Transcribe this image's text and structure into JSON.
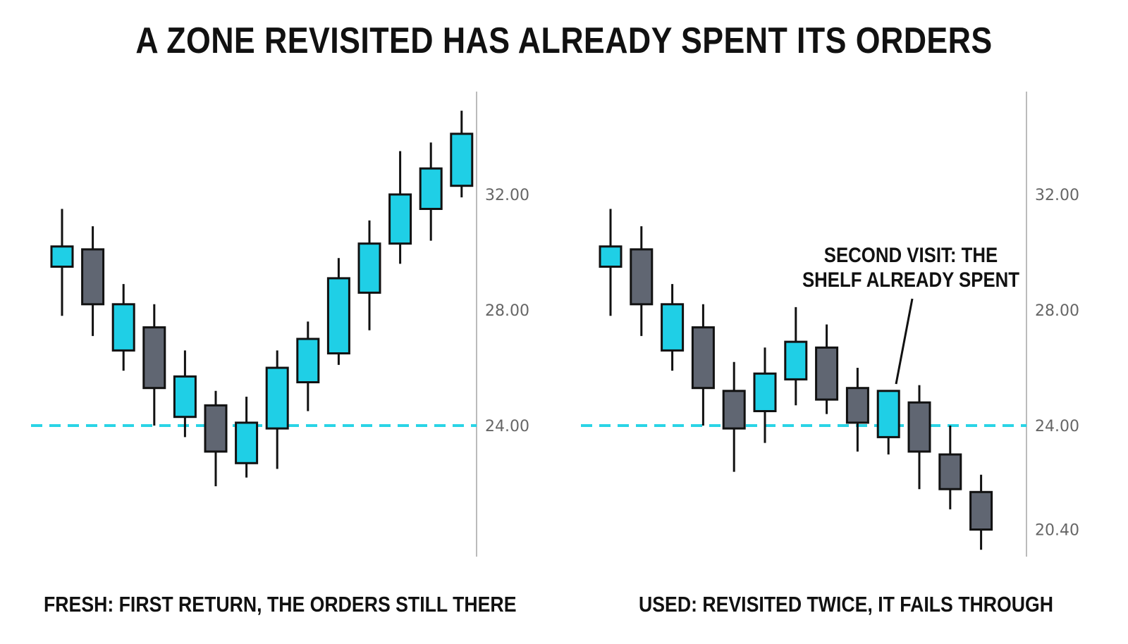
{
  "title": "A ZONE REVISITED HAS ALREADY SPENT ITS ORDERS",
  "colors": {
    "bull": "#1fcfe6",
    "bear": "#606672",
    "zone": "#2ad4e6",
    "outline": "#111111",
    "axis": "#bbbbbb"
  },
  "chart_data": [
    {
      "type": "candlestick",
      "caption": "FRESH: FIRST RETURN, THE ORDERS STILL THERE",
      "y_ticks": [
        "32.00",
        "28.00",
        "24.00"
      ],
      "zone_level": 24.0,
      "candles": [
        {
          "open": 29.5,
          "close": 30.2,
          "high": 31.5,
          "low": 27.8
        },
        {
          "open": 30.1,
          "close": 28.2,
          "high": 30.9,
          "low": 27.1
        },
        {
          "open": 26.6,
          "close": 28.2,
          "high": 28.9,
          "low": 25.9
        },
        {
          "open": 27.4,
          "close": 25.3,
          "high": 28.2,
          "low": 24.0
        },
        {
          "open": 24.3,
          "close": 25.7,
          "high": 26.6,
          "low": 23.6
        },
        {
          "open": 24.7,
          "close": 23.1,
          "high": 25.2,
          "low": 21.9
        },
        {
          "open": 22.7,
          "close": 24.1,
          "high": 25.0,
          "low": 22.2
        },
        {
          "open": 23.9,
          "close": 26.0,
          "high": 26.6,
          "low": 22.5
        },
        {
          "open": 25.5,
          "close": 27.0,
          "high": 27.6,
          "low": 24.5
        },
        {
          "open": 26.5,
          "close": 29.1,
          "high": 29.8,
          "low": 26.1
        },
        {
          "open": 28.6,
          "close": 30.3,
          "high": 31.1,
          "low": 27.3
        },
        {
          "open": 30.3,
          "close": 32.0,
          "high": 33.5,
          "low": 29.6
        },
        {
          "open": 31.5,
          "close": 32.9,
          "high": 33.8,
          "low": 30.4
        },
        {
          "open": 32.3,
          "close": 34.1,
          "high": 34.9,
          "low": 31.9
        }
      ]
    },
    {
      "type": "candlestick",
      "caption": "USED: REVISITED TWICE, IT FAILS THROUGH",
      "y_ticks": [
        "32.00",
        "28.00",
        "24.00",
        "20.40"
      ],
      "zone_level": 24.0,
      "annotation": [
        "SECOND VISIT: THE",
        "SHELF ALREADY SPENT"
      ],
      "candles": [
        {
          "open": 29.5,
          "close": 30.2,
          "high": 31.5,
          "low": 27.8
        },
        {
          "open": 30.1,
          "close": 28.2,
          "high": 30.9,
          "low": 27.1
        },
        {
          "open": 26.6,
          "close": 28.2,
          "high": 28.9,
          "low": 25.9
        },
        {
          "open": 27.4,
          "close": 25.3,
          "high": 28.2,
          "low": 24.0
        },
        {
          "open": 25.2,
          "close": 23.9,
          "high": 26.2,
          "low": 22.4
        },
        {
          "open": 24.5,
          "close": 25.8,
          "high": 26.7,
          "low": 23.4
        },
        {
          "open": 25.6,
          "close": 26.9,
          "high": 28.1,
          "low": 24.7
        },
        {
          "open": 26.7,
          "close": 24.9,
          "high": 27.5,
          "low": 24.4
        },
        {
          "open": 25.3,
          "close": 24.1,
          "high": 26.0,
          "low": 23.1
        },
        {
          "open": 23.6,
          "close": 25.2,
          "high": 25.2,
          "low": 23.0
        },
        {
          "open": 24.8,
          "close": 23.1,
          "high": 25.4,
          "low": 21.8
        },
        {
          "open": 23.0,
          "close": 21.8,
          "high": 24.0,
          "low": 21.1
        },
        {
          "open": 21.7,
          "close": 20.4,
          "high": 22.3,
          "low": 19.7
        }
      ]
    }
  ]
}
